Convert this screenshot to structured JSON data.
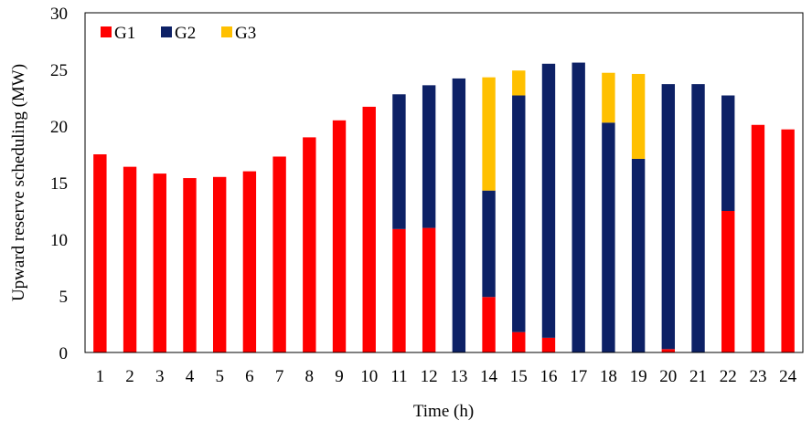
{
  "chart_data": {
    "type": "bar",
    "stacked": true,
    "categories": [
      "1",
      "2",
      "3",
      "4",
      "5",
      "6",
      "7",
      "8",
      "9",
      "10",
      "11",
      "12",
      "13",
      "14",
      "15",
      "16",
      "17",
      "18",
      "19",
      "20",
      "21",
      "22",
      "23",
      "24"
    ],
    "series": [
      {
        "name": "G1",
        "color": "#ff0000",
        "values": [
          17.5,
          16.4,
          15.8,
          15.4,
          15.5,
          16.0,
          17.3,
          19.0,
          20.5,
          21.7,
          10.9,
          11.0,
          0,
          4.9,
          1.8,
          1.3,
          0,
          0,
          0,
          0.3,
          0,
          12.5,
          20.1,
          19.7
        ]
      },
      {
        "name": "G2",
        "color": "#0d2166",
        "values": [
          0,
          0,
          0,
          0,
          0,
          0,
          0,
          0,
          0,
          0,
          11.9,
          12.6,
          24.2,
          9.4,
          20.9,
          24.2,
          25.6,
          20.3,
          17.1,
          23.4,
          23.7,
          10.2,
          0,
          0
        ]
      },
      {
        "name": "G3",
        "color": "#ffc000",
        "values": [
          0,
          0,
          0,
          0,
          0,
          0,
          0,
          0,
          0,
          0,
          0,
          0,
          0,
          10.0,
          2.2,
          0,
          0,
          4.4,
          7.5,
          0,
          0,
          0,
          0,
          0
        ]
      }
    ],
    "xlabel": "Time (h)",
    "ylabel": "Upward reserve scheduling (MW)",
    "ylim": [
      0,
      30
    ],
    "yticks": [
      0,
      5,
      10,
      15,
      20,
      25,
      30
    ],
    "grid": false,
    "legend_position": "top-left"
  }
}
